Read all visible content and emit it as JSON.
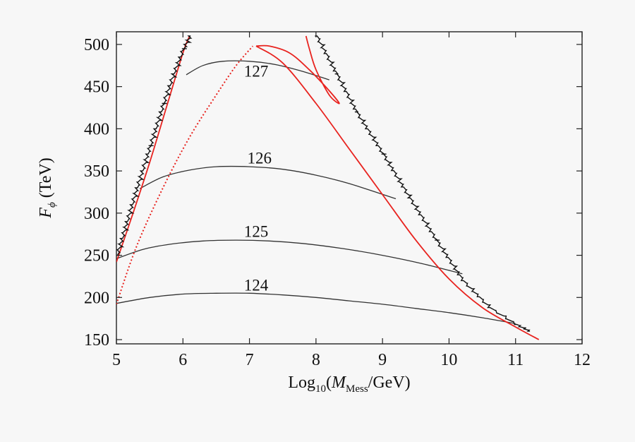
{
  "chart_data": {
    "type": "line",
    "title": "",
    "xlabel": {
      "prefix": "Log",
      "sub": "10",
      "open": "(",
      "var": "M",
      "var_sub": "Mess",
      "rest": "/GeV)"
    },
    "ylabel": {
      "var": "F",
      "var_sub": "ϕ",
      "unit": " (TeV)"
    },
    "xlim": [
      5,
      12
    ],
    "ylim": [
      145,
      515
    ],
    "x_ticks": [
      5,
      6,
      7,
      8,
      9,
      10,
      11,
      12
    ],
    "x_tick_labels": [
      "5",
      "6",
      "7",
      "8",
      "9",
      "10",
      "11",
      "12"
    ],
    "y_ticks": [
      150,
      200,
      250,
      300,
      350,
      400,
      450,
      500
    ],
    "y_tick_labels": [
      "150",
      "200",
      "250",
      "300",
      "350",
      "400",
      "450",
      "500"
    ],
    "colors": {
      "contour": "#333333",
      "red": "#e8231f",
      "boundary": "#111111",
      "frame": "#222222"
    },
    "series": [
      {
        "name": "127",
        "kind": "contour",
        "label": "127",
        "label_pos": [
          7.1,
          462
        ],
        "x": [
          6.05,
          6.3,
          6.6,
          7.0,
          7.4,
          7.8,
          8.2
        ],
        "y": [
          464,
          475,
          480,
          480,
          476,
          468,
          458
        ]
      },
      {
        "name": "126",
        "kind": "contour",
        "label": "126",
        "label_pos": [
          7.15,
          359
        ],
        "x": [
          5.35,
          5.7,
          6.1,
          6.5,
          7.0,
          7.5,
          8.0,
          8.5,
          9.2
        ],
        "y": [
          329,
          343,
          351,
          355,
          355,
          352,
          345,
          335,
          317
        ]
      },
      {
        "name": "125",
        "kind": "contour",
        "label": "125",
        "label_pos": [
          7.1,
          272
        ],
        "x": [
          5.0,
          5.4,
          5.8,
          6.3,
          6.8,
          7.3,
          7.8,
          8.4,
          9.0,
          9.6,
          10.2
        ],
        "y": [
          246,
          257,
          263,
          267,
          268,
          267,
          264,
          258,
          250,
          240,
          228
        ]
      },
      {
        "name": "124",
        "kind": "contour",
        "label": "124",
        "label_pos": [
          7.1,
          208
        ],
        "x": [
          5.0,
          5.5,
          6.0,
          6.5,
          7.0,
          7.5,
          8.0,
          8.5,
          9.0,
          9.5,
          10.0,
          10.5,
          11.0
        ],
        "y": [
          193,
          200,
          204,
          205,
          205,
          203,
          200,
          196,
          192,
          187,
          182,
          176,
          169
        ]
      },
      {
        "name": "red-left-edge",
        "kind": "red",
        "x": [
          5.0,
          5.25,
          5.5,
          5.75,
          6.0,
          6.1
        ],
        "y": [
          242,
          300,
          360,
          425,
          490,
          510
        ]
      },
      {
        "name": "red-dotted-rise",
        "kind": "red-dotted",
        "x": [
          5.0,
          5.3,
          5.7,
          6.1,
          6.5,
          6.8,
          7.05
        ],
        "y": [
          192,
          260,
          330,
          390,
          440,
          475,
          498
        ]
      },
      {
        "name": "red-loop",
        "kind": "red",
        "x": [
          7.1,
          7.3,
          7.6,
          7.9,
          8.2,
          8.35,
          8.2,
          8.0,
          7.9,
          7.85
        ],
        "y": [
          498,
          498,
          490,
          470,
          445,
          430,
          440,
          470,
          495,
          510
        ]
      },
      {
        "name": "red-main-descent",
        "kind": "red",
        "x": [
          7.1,
          7.5,
          8.0,
          8.5,
          9.0,
          9.5,
          10.0,
          10.5,
          11.0,
          11.35
        ],
        "y": [
          498,
          478,
          430,
          376,
          322,
          268,
          222,
          188,
          165,
          150
        ]
      },
      {
        "name": "left-boundary",
        "kind": "boundary",
        "x": [
          5.0,
          5.15,
          5.3,
          5.5,
          5.7,
          5.85,
          6.0,
          6.1
        ],
        "y": [
          250,
          290,
          330,
          380,
          430,
          465,
          495,
          510
        ]
      },
      {
        "name": "right-boundary",
        "kind": "boundary",
        "x": [
          8.0,
          8.3,
          8.6,
          9.0,
          9.4,
          9.8,
          10.2,
          10.6,
          11.0,
          11.2
        ],
        "y": [
          510,
          465,
          420,
          370,
          318,
          268,
          220,
          188,
          168,
          160
        ]
      }
    ]
  }
}
